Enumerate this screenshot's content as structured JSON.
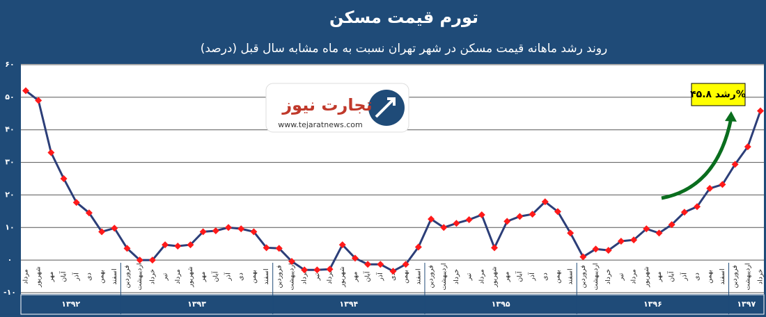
{
  "chart_data": {
    "type": "line",
    "title": "تورم قیمت مسکن",
    "subtitle": "روند رشد ماهانه قیمت مسکن در شهر تهران نسبت به ماه مشابه سال قبل (درصد)",
    "year_groups": [
      {
        "label": "۱۳۹۲",
        "months": [
          "مرداد",
          "شهریور",
          "مهر",
          "آبان",
          "آذر",
          "دی",
          "بهمن",
          "اسفند"
        ]
      },
      {
        "label": "۱۳۹۳",
        "months": [
          "فروردین",
          "اردیبهشت",
          "خرداد",
          "تیر",
          "مرداد",
          "شهریور",
          "مهر",
          "آبان",
          "آذر",
          "دی",
          "بهمن",
          "اسفند"
        ]
      },
      {
        "label": "۱۳۹۴",
        "months": [
          "فروردین",
          "اردیبهشت",
          "خرداد",
          "تیر",
          "مرداد",
          "شهریور",
          "مهر",
          "آبان",
          "آذر",
          "دی",
          "بهمن",
          "اسفند"
        ]
      },
      {
        "label": "۱۳۹۵",
        "months": [
          "فروردین",
          "اردیبهشت",
          "خرداد",
          "تیر",
          "مرداد",
          "شهریور",
          "مهر",
          "آبان",
          "آذر",
          "دی",
          "بهمن",
          "اسفند"
        ]
      },
      {
        "label": "۱۳۹۶",
        "months": [
          "فروردین",
          "اردیبهشت",
          "خرداد",
          "تیر",
          "مرداد",
          "شهریور",
          "مهر",
          "آبان",
          "آذر",
          "دی",
          "بهمن",
          "اسفند"
        ]
      },
      {
        "label": "۱۳۹۷",
        "months": [
          "فروردین",
          "اردیبهشت",
          "خرداد"
        ]
      }
    ],
    "values": [
      52,
      49,
      33,
      25,
      17.7,
      14.5,
      8.7,
      9.8,
      3.6,
      0,
      0,
      4.7,
      4.3,
      4.7,
      8.7,
      9,
      10,
      9.6,
      8.7,
      3.8,
      3.6,
      -0.4,
      -3,
      -3,
      -2.8,
      4.7,
      0.6,
      -1.3,
      -1.3,
      -3.4,
      -1.3,
      4,
      12.6,
      10,
      11.3,
      12.4,
      13.9,
      3.8,
      11.9,
      13.4,
      14.1,
      17.9,
      14.9,
      8.3,
      1,
      3.4,
      3,
      5.8,
      6.2,
      9.6,
      8.3,
      10.9,
      14.7,
      16.4,
      22,
      23.2,
      29.4,
      34.8,
      45.8
    ],
    "line_color": "#2c3e78",
    "marker_color": "#ff1a1a",
    "ylim": [
      -10,
      60
    ],
    "yticks": [
      {
        "value": -10,
        "label": "-۱۰"
      },
      {
        "value": 0,
        "label": "۰"
      },
      {
        "value": 10,
        "label": "۱۰"
      },
      {
        "value": 20,
        "label": "۲۰"
      },
      {
        "value": 30,
        "label": "۳۰"
      },
      {
        "value": 40,
        "label": "۴۰"
      },
      {
        "value": 50,
        "label": "۵۰"
      },
      {
        "value": 60,
        "label": "۶۰"
      }
    ],
    "grid": true,
    "annotation": "رشد ۴۵.۸%",
    "logo": {
      "name": "تجارت نیوز",
      "url": "www.tejaratnews.com"
    }
  }
}
